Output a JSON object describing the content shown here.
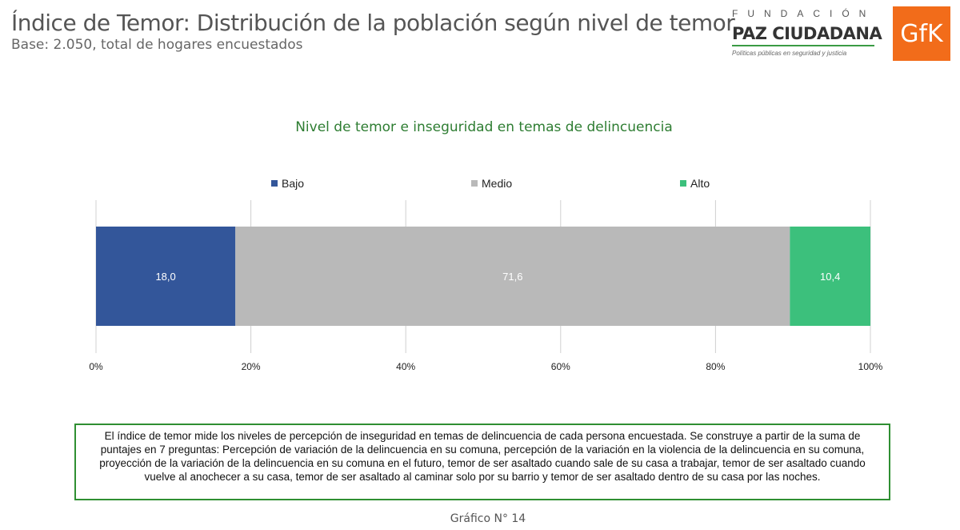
{
  "header": {
    "title": "Índice de Temor: Distribución de la población según nivel de temor",
    "subtitle": "Base: 2.050, total de hogares encuestados"
  },
  "logos": {
    "paz_top": "FUNDACIÓN",
    "paz_name": "PAZ CIUDADANA",
    "paz_tagline": "Políticas públicas en seguridad y justicia",
    "gfk": "GfK",
    "gfk_color": "#f26c1a"
  },
  "chart_data": {
    "type": "bar",
    "orientation": "horizontal",
    "stacked": true,
    "title": "Nivel de temor e inseguridad en temas de delincuencia",
    "series": [
      {
        "name": "Bajo",
        "values": [
          18.0
        ],
        "label": "18,0",
        "color": "#33569a"
      },
      {
        "name": "Medio",
        "values": [
          71.6
        ],
        "label": "71,6",
        "color": "#b9b9b9"
      },
      {
        "name": "Alto",
        "values": [
          10.4
        ],
        "label": "10,4",
        "color": "#3cc07c"
      }
    ],
    "xlim": [
      0,
      100
    ],
    "xticks": [
      "0%",
      "20%",
      "40%",
      "60%",
      "80%",
      "100%"
    ],
    "grid": true,
    "legend": "top"
  },
  "note": "El índice de temor mide los niveles de percepción de inseguridad en temas de delincuencia de cada persona encuestada. Se construye a partir de la suma de puntajes en 7 preguntas: Percepción de variación de la delincuencia en su comuna, percepción de la variación en la violencia de la delincuencia en su comuna, proyección de la variación de la delincuencia en su comuna en el futuro, temor de ser asaltado cuando sale de su casa a trabajar, temor de ser asaltado cuando vuelve al anochecer a su casa, temor de ser asaltado al caminar solo por su barrio y temor de ser asaltado dentro de su casa por las noches.",
  "footer": "Gráfico N° 14"
}
